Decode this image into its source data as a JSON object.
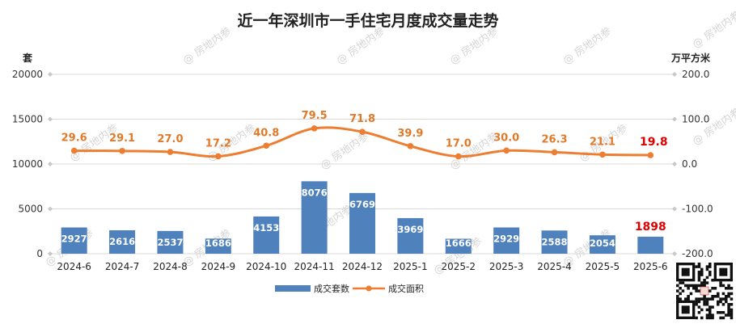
{
  "chart_data": {
    "type": "bar",
    "title": "近一年深圳市一手住宅月度成交量走势",
    "categories": [
      "2024-6",
      "2024-7",
      "2024-8",
      "2024-9",
      "2024-10",
      "2024-11",
      "2024-12",
      "2025-1",
      "2025-2",
      "2025-3",
      "2025-4",
      "2025-5",
      "2025-6"
    ],
    "y_left": {
      "unit": "套",
      "range": [
        0,
        20000
      ],
      "ticks": [
        "0",
        "5000",
        "10000",
        "15000",
        "20000"
      ]
    },
    "y_right": {
      "unit": "万平方米",
      "range": [
        -200,
        200
      ],
      "ticks": [
        "-200.0",
        "-100.0",
        "0.0",
        "100.0",
        "200.0"
      ]
    },
    "grid": true,
    "legend": "bottom",
    "series": [
      {
        "name": "成交套数",
        "type": "bar",
        "axis": "left",
        "color": "#4f81bd",
        "values": [
          2927,
          2616,
          2537,
          1686,
          4153,
          8076,
          6769,
          3969,
          1666,
          2929,
          2588,
          2054,
          1898
        ],
        "labels": [
          "2927",
          "2616",
          "2537",
          "1686",
          "4153",
          "8076",
          "6769",
          "3969",
          "1666",
          "2929",
          "2588",
          "2054",
          "1898"
        ]
      },
      {
        "name": "成交面积",
        "type": "line",
        "axis": "right",
        "color": "#ed7d31",
        "values": [
          29.6,
          29.1,
          27.0,
          17.2,
          40.8,
          79.5,
          71.8,
          39.9,
          17.0,
          30.0,
          26.3,
          21.1,
          19.8
        ],
        "labels": [
          "29.6",
          "29.1",
          "27.0",
          "17.2",
          "40.8",
          "79.5",
          "71.8",
          "39.9",
          "17.0",
          "30.0",
          "26.3",
          "21.1",
          "19.8"
        ]
      }
    ],
    "highlight_color": "#e00000",
    "watermark": "房地内参"
  }
}
